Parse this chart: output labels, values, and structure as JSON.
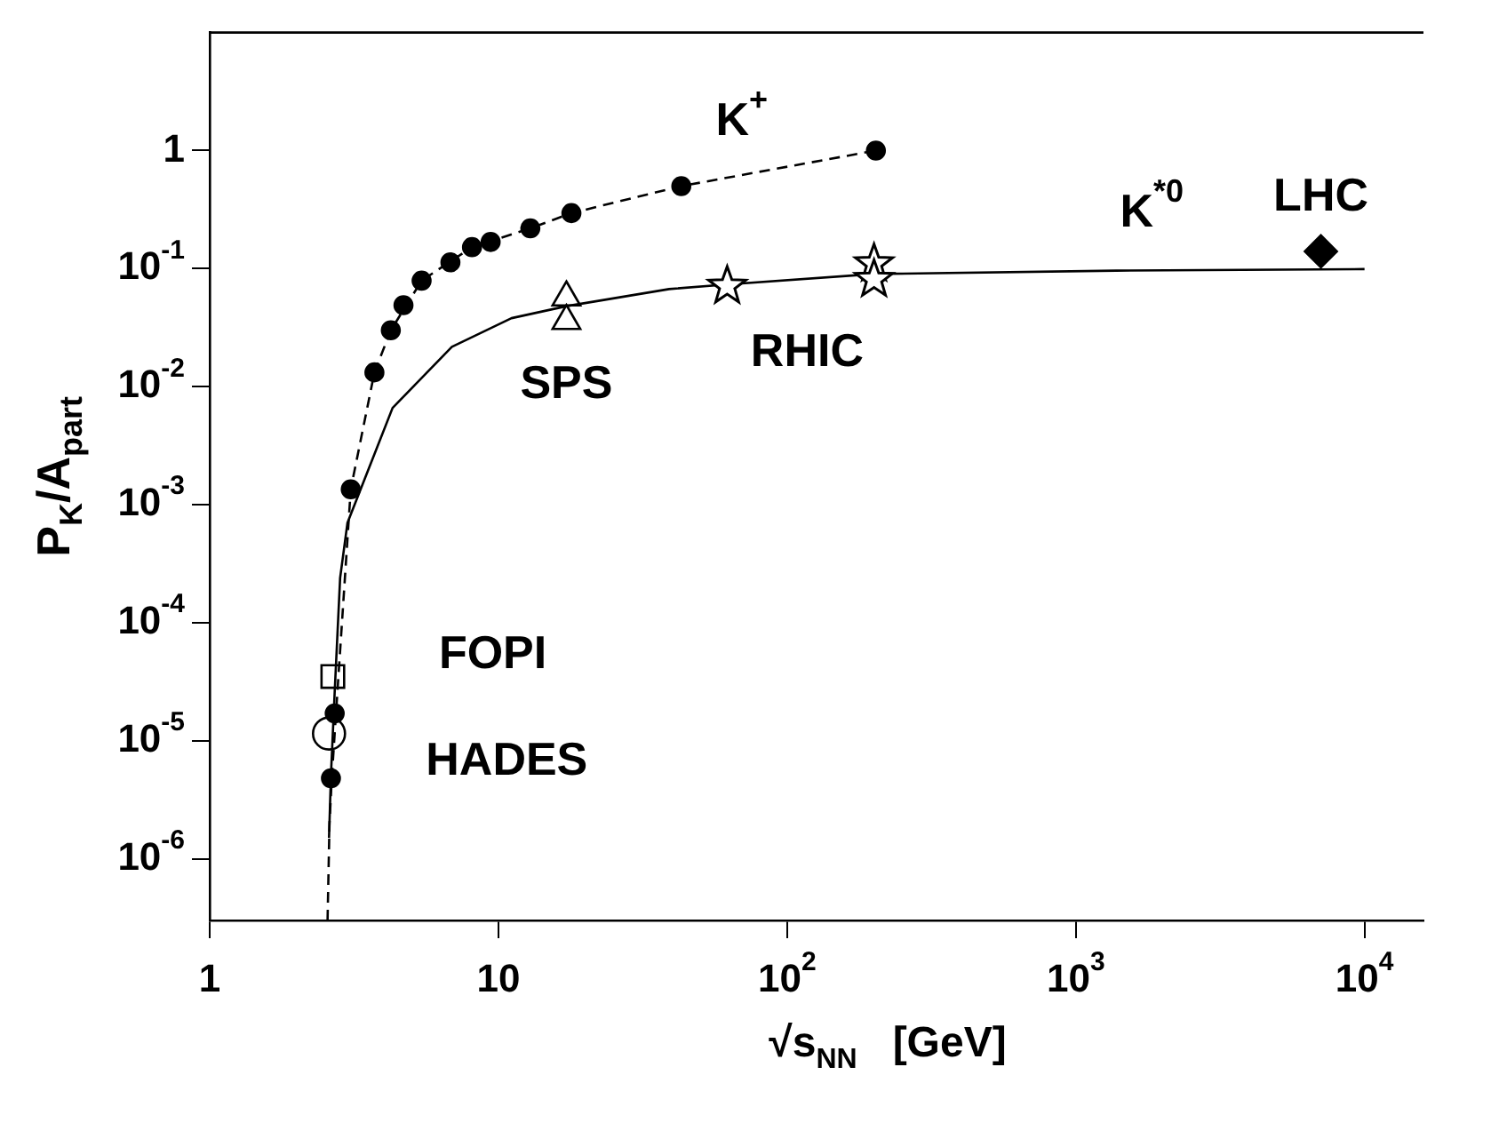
{
  "chart_data": {
    "type": "scatter",
    "xlabel": "√s$_{NN}$   [GeV]",
    "ylabel": "P$_{K}$/A$_{part}$",
    "log": "xy",
    "grid": false,
    "xlim": [
      1,
      16000
    ],
    "ylim": [
      3e-07,
      10
    ],
    "xticks": [
      1,
      10,
      {
        "value": 100,
        "label": "10$^{2}$"
      },
      {
        "value": 1000,
        "label": "10$^{3}$"
      },
      {
        "value": 10000,
        "label": "10$^{4}$"
      }
    ],
    "yticks": [
      {
        "value": 1e-06,
        "label": "10$^{-6}$"
      },
      {
        "value": 1e-05,
        "label": "10$^{-5}$"
      },
      {
        "value": 0.0001,
        "label": "10$^{-4}$"
      },
      {
        "value": 0.001,
        "label": "10$^{-3}$"
      },
      {
        "value": 0.01,
        "label": "10$^{-2}$"
      },
      {
        "value": 0.1,
        "label": "10$^{-1}$"
      },
      1
    ],
    "series": [
      {
        "type": "line",
        "color": "#000000",
        "marker": "none",
        "line_style": "dashed",
        "x": [
          2.56,
          2.6,
          2.65,
          2.75,
          3.08,
          3.72,
          4.24,
          5.42,
          8.1,
          12.9,
          17.9,
          43,
          203
        ],
        "values": [
          3e-07,
          2e-06,
          5e-06,
          2e-05,
          0.00135,
          0.0132,
          0.03,
          0.079,
          0.152,
          0.219,
          0.295,
          0.5,
          1.0
        ]
      },
      {
        "type": "line",
        "name": "K$^{*0}$",
        "color": "#000000",
        "marker": "none",
        "line_style": "solid",
        "x": [
          2.59,
          2.63,
          2.71,
          2.83,
          3.0,
          4.3,
          6.9,
          11.1,
          17.2,
          39,
          60,
          200,
          1380,
          10000
        ],
        "values": [
          1.5e-06,
          5.1e-06,
          2.6e-05,
          0.00024,
          0.0007,
          0.0066,
          0.0217,
          0.038,
          0.048,
          0.067,
          0.073,
          0.09,
          0.096,
          0.099
        ]
      },
      {
        "type": "scatter",
        "name": "K$^{+}$",
        "color": "#000000",
        "marker": "circle",
        "x": [
          2.63,
          2.71,
          3.08,
          3.72,
          4.24,
          4.69,
          5.42,
          6.82,
          8.1,
          9.4,
          12.9,
          17.9,
          43,
          203
        ],
        "values": [
          4.8e-06,
          1.7e-05,
          0.00135,
          0.0132,
          0.03,
          0.049,
          0.079,
          0.113,
          0.152,
          0.168,
          0.219,
          0.295,
          0.5,
          1.0
        ]
      },
      {
        "type": "scatter",
        "name": "SPS",
        "color": "#000000",
        "marker": "triangle",
        "x": [
          17.2,
          17.2
        ],
        "values": [
          0.057,
          0.036
        ]
      },
      {
        "type": "scatter",
        "name": "RHIC",
        "color": "#000000",
        "marker": "star",
        "x": [
          62,
          200,
          200
        ],
        "values": [
          0.071,
          0.11,
          0.081
        ]
      },
      {
        "type": "scatter",
        "name": "LHC",
        "color": "#000000",
        "marker": "diamond",
        "x": [
          7060
        ],
        "values": [
          0.14
        ]
      },
      {
        "type": "scatter",
        "name": "FOPI",
        "color": "#000000",
        "marker": "square",
        "x": [
          2.67
        ],
        "values": [
          3.5e-05
        ]
      },
      {
        "type": "scatter",
        "name": "HADES",
        "color": "#000000",
        "marker": "circle",
        "x": [
          2.59
        ],
        "values": [
          1.15e-05
        ]
      }
    ]
  }
}
